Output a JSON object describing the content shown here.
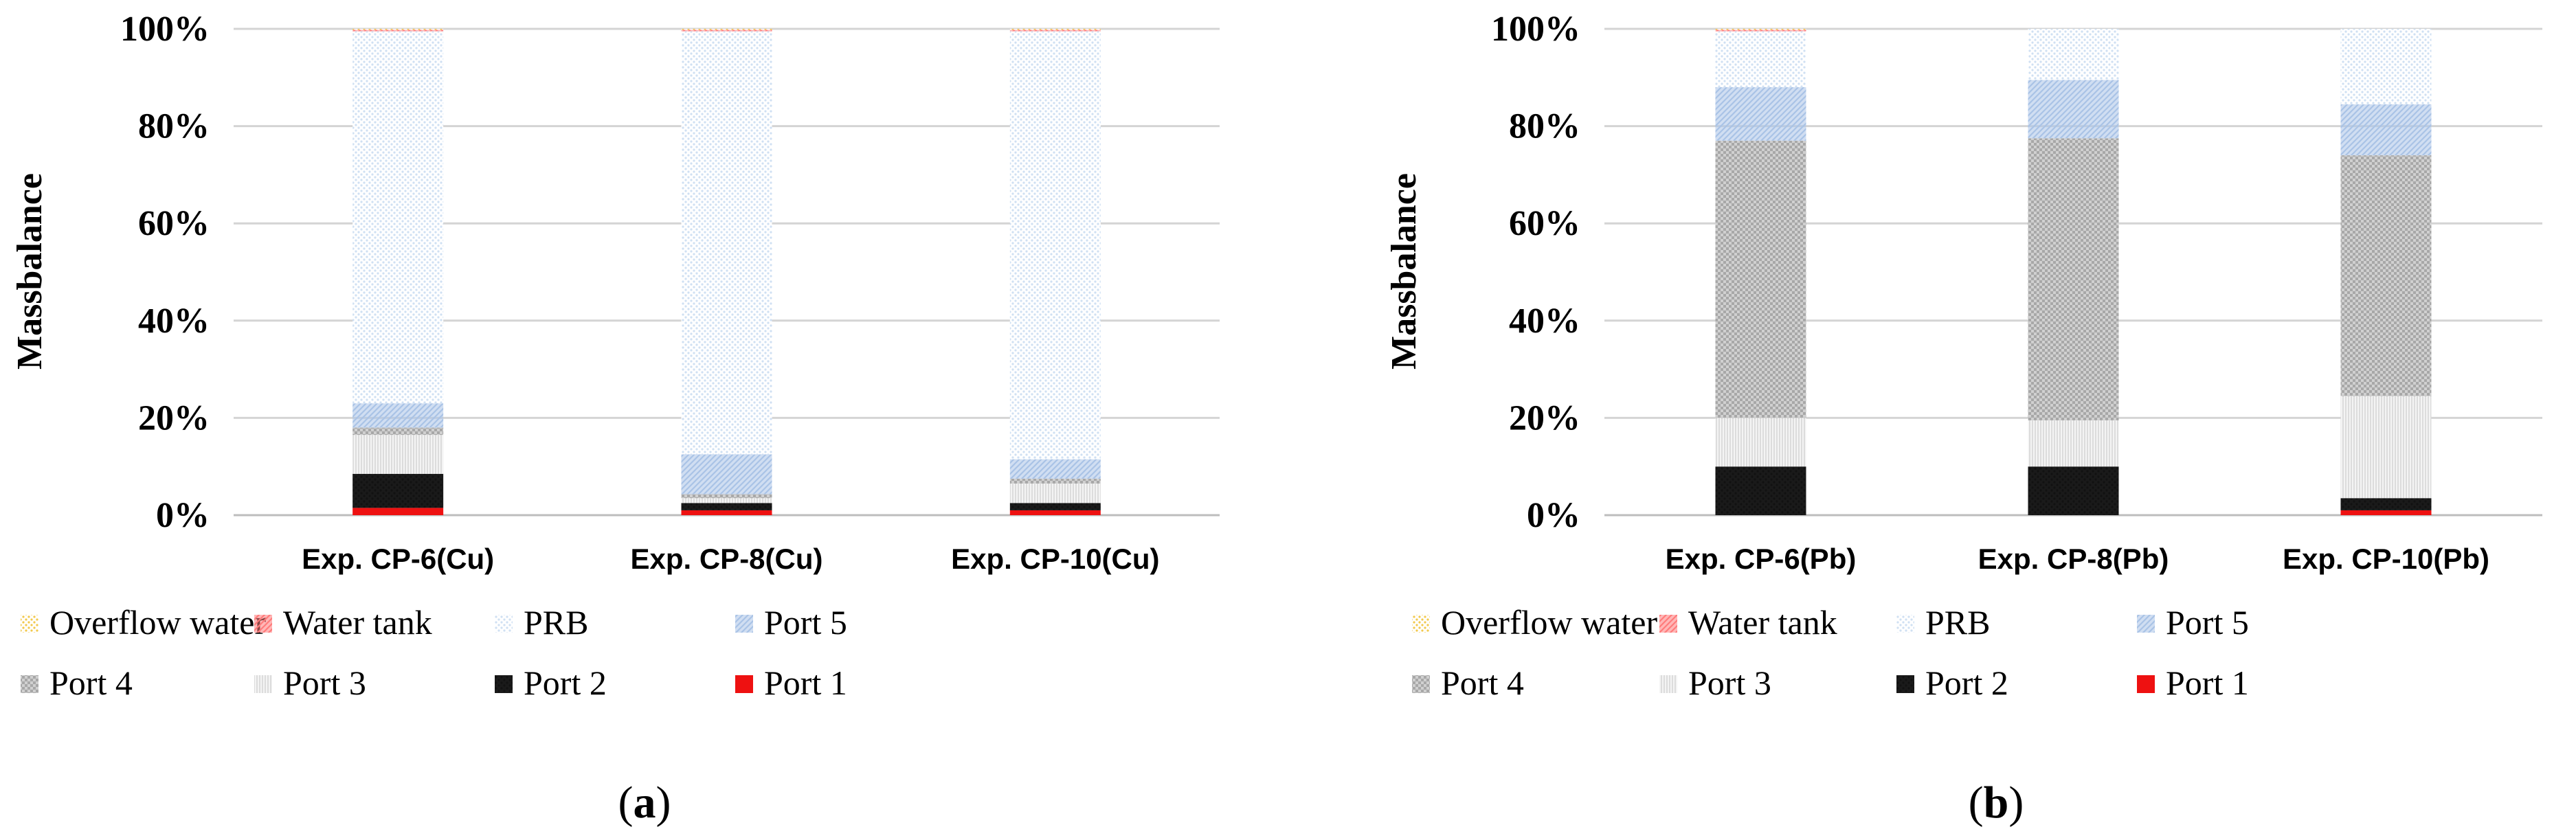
{
  "y_axis_label": "Massbalance",
  "y_tick_labels": [
    "0%",
    "20%",
    "40%",
    "60%",
    "80%",
    "100%"
  ],
  "legend": [
    {
      "name": "Overflow water",
      "color": "#f2c94c",
      "pattern": "dots"
    },
    {
      "name": "Water tank",
      "color": "#ff7b7b",
      "pattern": "diag"
    },
    {
      "name": "PRB",
      "color": "#cfe0f3",
      "pattern": "dots"
    },
    {
      "name": "Port 5",
      "color": "#a9c3e6",
      "pattern": "diag"
    },
    {
      "name": "Port 4",
      "color": "#a8a8a8",
      "pattern": "checker"
    },
    {
      "name": "Port 3",
      "color": "#dcdcdc",
      "pattern": "vert"
    },
    {
      "name": "Port 2",
      "color": "#111111",
      "pattern": "dots"
    },
    {
      "name": "Port 1",
      "color": "#ee1111",
      "pattern": "solid"
    }
  ],
  "chart_data": [
    {
      "type": "bar",
      "stacked": true,
      "panel_label": "a",
      "xlabel": "",
      "ylabel": "Massbalance",
      "ylim": [
        0,
        100
      ],
      "y_unit": "%",
      "grid": true,
      "legend_position": "bottom",
      "categories": [
        "Exp. CP-6(Cu)",
        "Exp. CP-8(Cu)",
        "Exp. CP-10(Cu)"
      ],
      "series": [
        {
          "name": "Port 1",
          "values": [
            1.5,
            1.0,
            1.0
          ]
        },
        {
          "name": "Port 2",
          "values": [
            7.0,
            1.5,
            1.5
          ]
        },
        {
          "name": "Port 3",
          "values": [
            8.0,
            1.0,
            4.0
          ]
        },
        {
          "name": "Port 4",
          "values": [
            1.5,
            0.8,
            1.0
          ]
        },
        {
          "name": "Port 5",
          "values": [
            5.0,
            8.2,
            4.0
          ]
        },
        {
          "name": "PRB",
          "values": [
            76.5,
            87.0,
            88.0
          ]
        },
        {
          "name": "Water tank",
          "values": [
            0.3,
            0.3,
            0.3
          ]
        },
        {
          "name": "Overflow water",
          "values": [
            0.2,
            0.2,
            0.2
          ]
        }
      ]
    },
    {
      "type": "bar",
      "stacked": true,
      "panel_label": "b",
      "xlabel": "",
      "ylabel": "Massbalance",
      "ylim": [
        0,
        100
      ],
      "y_unit": "%",
      "grid": true,
      "legend_position": "bottom",
      "categories": [
        "Exp. CP-6(Pb)",
        "Exp. CP-8(Pb)",
        "Exp. CP-10(Pb)"
      ],
      "series": [
        {
          "name": "Port 1",
          "values": [
            0.0,
            0.0,
            1.0
          ]
        },
        {
          "name": "Port 2",
          "values": [
            10.0,
            10.0,
            2.5
          ]
        },
        {
          "name": "Port 3",
          "values": [
            10.0,
            9.5,
            21.0
          ]
        },
        {
          "name": "Port 4",
          "values": [
            57.0,
            58.0,
            49.5
          ]
        },
        {
          "name": "Port 5",
          "values": [
            11.0,
            12.0,
            10.5
          ]
        },
        {
          "name": "PRB",
          "values": [
            11.5,
            10.5,
            15.5
          ]
        },
        {
          "name": "Water tank",
          "values": [
            0.3,
            0.0,
            0.0
          ]
        },
        {
          "name": "Overflow water",
          "values": [
            0.2,
            0.0,
            0.0
          ]
        }
      ]
    }
  ]
}
